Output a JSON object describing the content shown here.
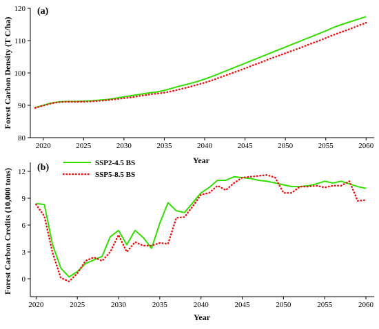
{
  "colors": {
    "ssp245": "#33dd00",
    "ssp585": "#ee1111",
    "axis": "#000000"
  },
  "chart_data": [
    {
      "type": "line",
      "panel_label": "(a)",
      "xlabel": "Year",
      "ylabel": "Forest Carbon Density (T C/ha)",
      "xlim": [
        2018.4,
        2061
      ],
      "ylim": [
        80,
        120
      ],
      "xticks": [
        2020,
        2025,
        2030,
        2035,
        2040,
        2045,
        2050,
        2055,
        2060
      ],
      "yticks": [
        80,
        90,
        100,
        110,
        120
      ],
      "x": [
        2019,
        2020,
        2021,
        2022,
        2023,
        2024,
        2025,
        2026,
        2027,
        2028,
        2029,
        2030,
        2031,
        2032,
        2033,
        2034,
        2035,
        2036,
        2037,
        2038,
        2039,
        2040,
        2041,
        2042,
        2043,
        2044,
        2045,
        2046,
        2047,
        2048,
        2049,
        2050,
        2051,
        2052,
        2053,
        2054,
        2055,
        2056,
        2057,
        2058,
        2059,
        2060
      ],
      "series": [
        {
          "key": "ssp245",
          "style": "solid",
          "values": [
            89.3,
            90.0,
            90.7,
            91.1,
            91.2,
            91.2,
            91.3,
            91.4,
            91.6,
            91.8,
            92.2,
            92.6,
            93.0,
            93.4,
            93.8,
            94.1,
            94.6,
            95.3,
            96.0,
            96.6,
            97.3,
            98.1,
            99.0,
            100.0,
            101.0,
            102.0,
            103.0,
            104.0,
            105.0,
            106.0,
            107.0,
            108.0,
            109.0,
            110.0,
            111.0,
            112.0,
            113.0,
            114.1,
            115.0,
            115.8,
            116.6,
            117.4
          ]
        },
        {
          "key": "ssp585",
          "style": "dotted",
          "values": [
            89.2,
            89.9,
            90.6,
            91.0,
            91.1,
            91.1,
            91.1,
            91.2,
            91.4,
            91.6,
            91.9,
            92.2,
            92.5,
            92.9,
            93.3,
            93.6,
            93.9,
            94.4,
            95.0,
            95.6,
            96.3,
            97.0,
            97.8,
            98.7,
            99.6,
            100.5,
            101.4,
            102.4,
            103.3,
            104.3,
            105.2,
            106.1,
            107.0,
            107.9,
            108.9,
            109.8,
            110.8,
            111.8,
            112.7,
            113.6,
            114.6,
            115.5
          ]
        }
      ]
    },
    {
      "type": "line",
      "panel_label": "(b)",
      "xlabel": "Year",
      "ylabel": "Forest Carbon Credits (10,000 tons)",
      "xlim": [
        2019.3,
        2061
      ],
      "ylim": [
        -2,
        13
      ],
      "xticks": [
        2020,
        2025,
        2030,
        2035,
        2040,
        2045,
        2050,
        2055,
        2060
      ],
      "yticks": [
        0,
        3,
        6,
        9,
        12
      ],
      "legend": {
        "position": "top-left",
        "entries": [
          "SSP2-4.5 BS",
          "SSP5-8.5 BS"
        ]
      },
      "x": [
        2020,
        2021,
        2022,
        2023,
        2024,
        2025,
        2026,
        2027,
        2028,
        2029,
        2030,
        2031,
        2032,
        2033,
        2034,
        2035,
        2036,
        2037,
        2038,
        2039,
        2040,
        2041,
        2042,
        2043,
        2044,
        2045,
        2046,
        2047,
        2048,
        2049,
        2050,
        2051,
        2052,
        2053,
        2054,
        2055,
        2056,
        2057,
        2058,
        2059,
        2060
      ],
      "series": [
        {
          "key": "ssp245",
          "name": "SSP2-4.5 BS",
          "style": "solid",
          "values": [
            8.4,
            8.3,
            3.8,
            1.2,
            0.2,
            0.8,
            1.7,
            2.1,
            2.5,
            4.7,
            5.4,
            3.8,
            5.4,
            4.6,
            3.4,
            6.2,
            8.5,
            7.6,
            7.4,
            8.5,
            9.6,
            10.2,
            11.0,
            11.0,
            11.4,
            11.3,
            11.2,
            11.0,
            10.9,
            10.7,
            10.5,
            10.3,
            10.3,
            10.4,
            10.6,
            10.9,
            10.7,
            10.9,
            10.6,
            10.3,
            10.1
          ]
        },
        {
          "key": "ssp585",
          "name": "SSP5-8.5 BS",
          "style": "dotted",
          "values": [
            8.3,
            7.0,
            2.9,
            0.1,
            -0.3,
            0.6,
            2.0,
            2.4,
            2.0,
            3.0,
            4.9,
            3.0,
            4.1,
            3.7,
            3.7,
            4.0,
            3.9,
            6.8,
            6.9,
            8.1,
            9.4,
            9.6,
            10.4,
            9.9,
            10.7,
            11.3,
            11.4,
            11.5,
            11.6,
            11.3,
            9.6,
            9.6,
            10.3,
            10.3,
            10.4,
            10.2,
            10.4,
            10.4,
            10.9,
            8.7,
            8.8
          ]
        }
      ]
    }
  ]
}
